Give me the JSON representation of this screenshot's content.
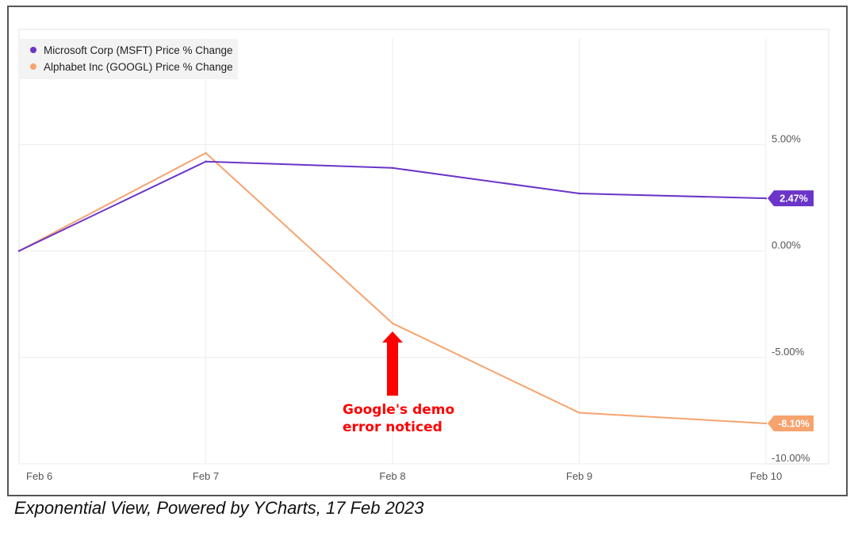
{
  "caption": "Exponential View, Powered by YCharts, 17 Feb 2023",
  "chart_data": {
    "type": "line",
    "x": [
      "Feb 6",
      "Feb 7",
      "Feb 8",
      "Feb 9",
      "Feb 10"
    ],
    "ylim": [
      -10,
      10
    ],
    "y_ticks": [
      5,
      0,
      -5,
      -10
    ],
    "y_tick_labels": [
      "5.00%",
      "0.00%",
      "-5.00%",
      "-10.00%"
    ],
    "grid": true,
    "legend_position": "top-left",
    "series": [
      {
        "name": "Microsoft Corp (MSFT) Price % Change",
        "color": "#6a35c8",
        "values": [
          0,
          4.2,
          3.9,
          2.7,
          2.47
        ],
        "end_label": "2.47%"
      },
      {
        "name": "Alphabet Inc (GOOGL) Price % Change",
        "color": "#f7a36e",
        "values": [
          0,
          4.6,
          -3.4,
          -7.6,
          -8.1
        ],
        "end_label": "-8.10%"
      }
    ],
    "annotation": {
      "text_lines": [
        "Google's demo",
        "error noticed"
      ],
      "color": "#ff0000",
      "x_category": "Feb 8"
    }
  }
}
